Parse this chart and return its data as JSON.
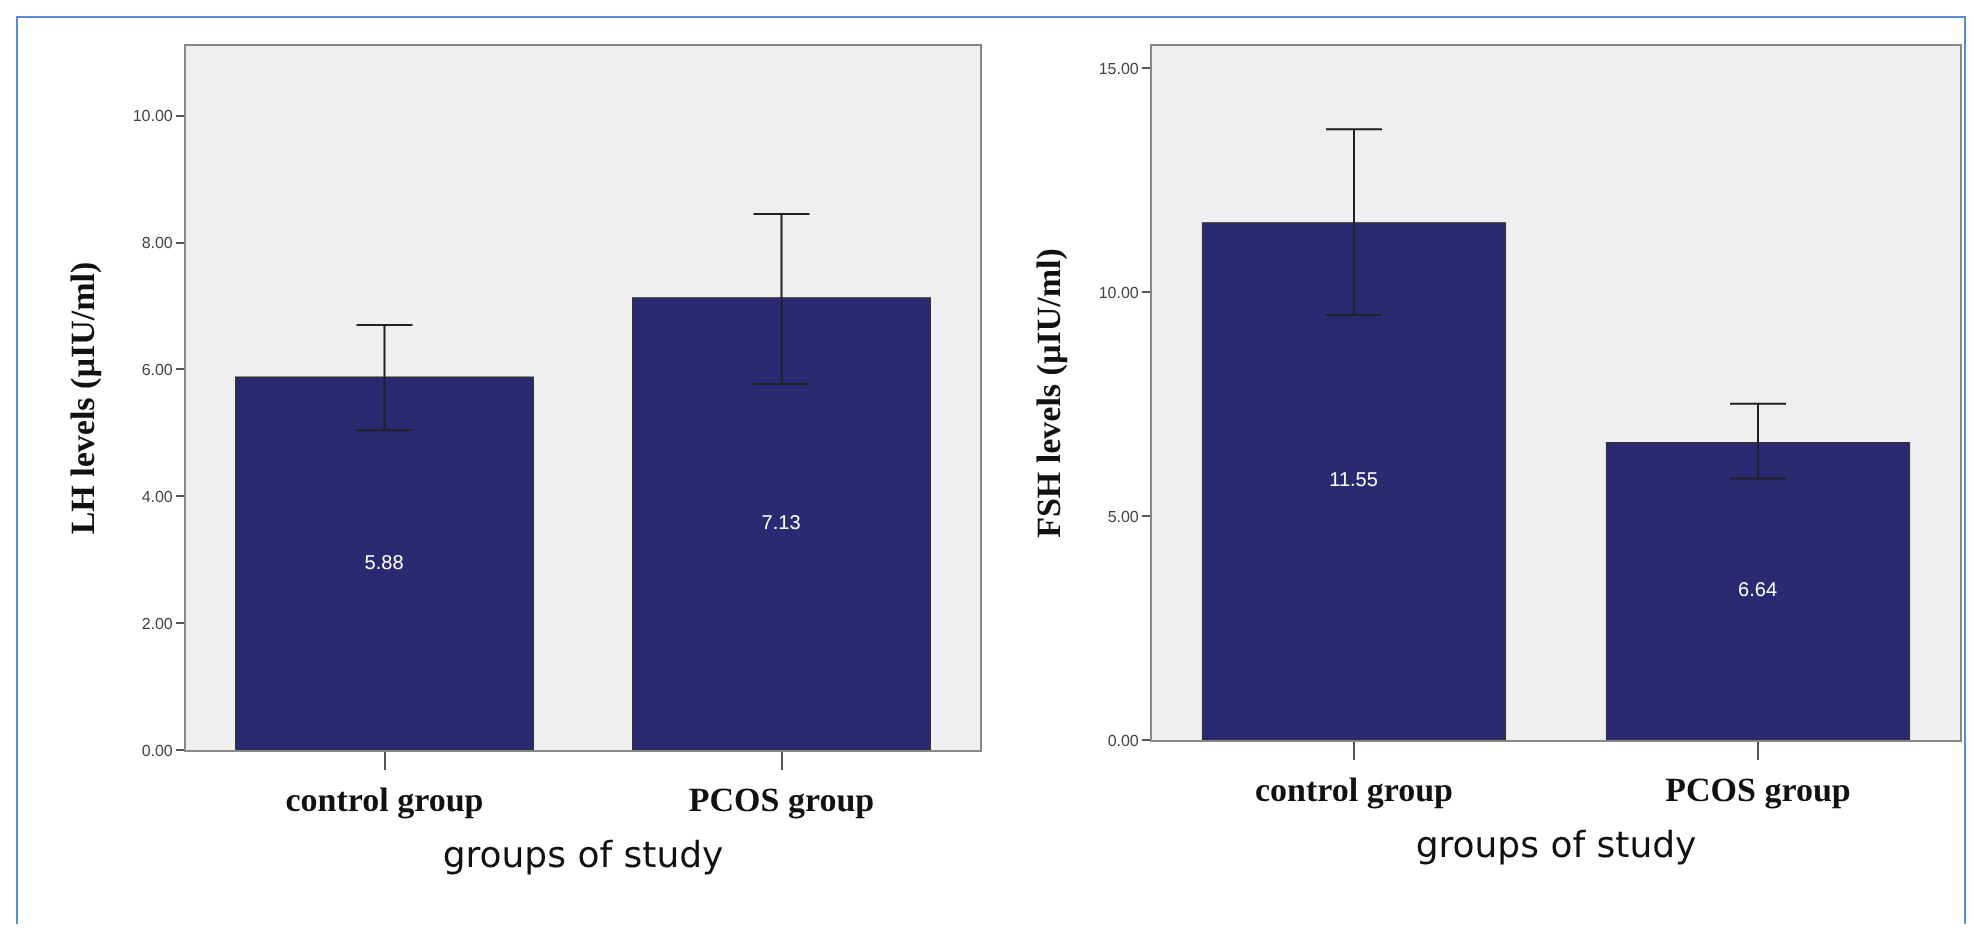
{
  "chart_data": [
    {
      "type": "bar",
      "categories": [
        "control group",
        "PCOS group"
      ],
      "xlabel": "groups of study",
      "ylabel": "LH levels (µIU/ml)",
      "values": [
        5.88,
        7.13
      ],
      "color": "#2a2a72",
      "errors": [
        [
          5.04,
          6.7
        ],
        [
          5.77,
          8.45
        ]
      ],
      "data_labels": true,
      "ylim": [
        0,
        11.1
      ],
      "yticks": [
        {
          "value": 0,
          "label": "0.00"
        },
        {
          "value": 2,
          "label": "2.00"
        },
        {
          "value": 4,
          "label": "4.00"
        },
        {
          "value": 6,
          "label": "6.00"
        },
        {
          "value": 8,
          "label": "8.00"
        },
        {
          "value": 10,
          "label": "10.00"
        }
      ],
      "grid": false
    },
    {
      "type": "bar",
      "categories": [
        "control group",
        "PCOS group"
      ],
      "xlabel": "groups of study",
      "ylabel": "FSH levels (µIU/ml)",
      "values": [
        11.55,
        6.64
      ],
      "color": "#2a2a72",
      "errors": [
        [
          9.49,
          13.64
        ],
        [
          5.84,
          7.51
        ]
      ],
      "data_labels": true,
      "ylim": [
        0,
        15.5
      ],
      "yticks": [
        {
          "value": 0,
          "label": "0.00"
        },
        {
          "value": 5,
          "label": "5.00"
        },
        {
          "value": 10,
          "label": "10.00"
        },
        {
          "value": 15,
          "label": "15.00"
        }
      ],
      "grid": false
    }
  ]
}
